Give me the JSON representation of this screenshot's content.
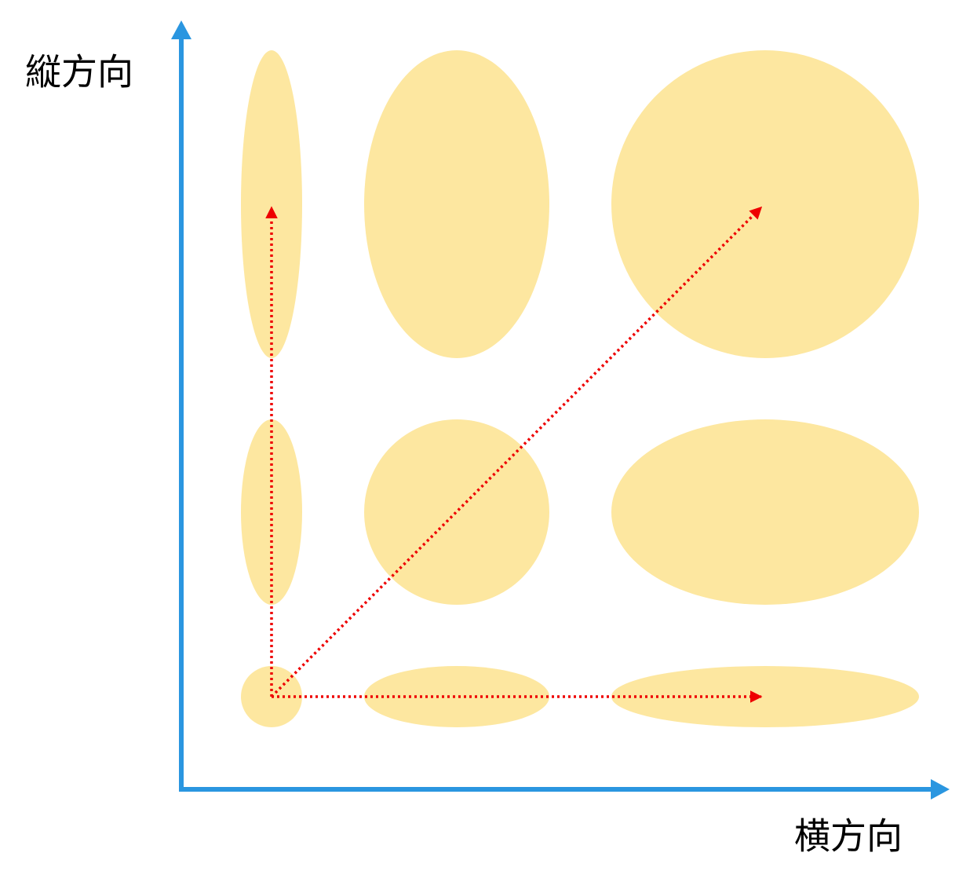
{
  "axes": {
    "vertical_label": "縦方向",
    "horizontal_label": "横方向"
  }
}
